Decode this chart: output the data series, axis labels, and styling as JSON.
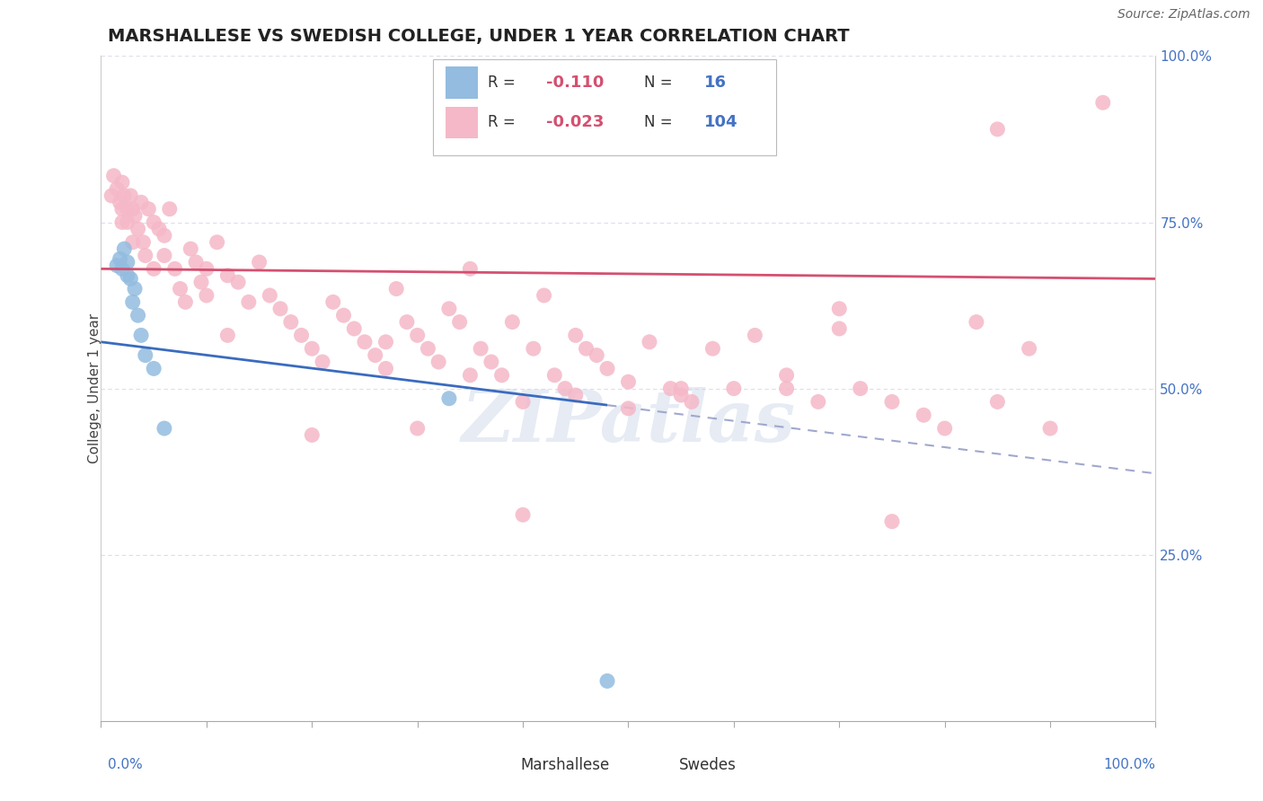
{
  "title": "MARSHALLESE VS SWEDISH COLLEGE, UNDER 1 YEAR CORRELATION CHART",
  "source_text": "Source: ZipAtlas.com",
  "ylabel": "College, Under 1 year",
  "watermark": "ZIPatlas",
  "R_marshallese": -0.11,
  "N_marshallese": 16,
  "R_swedes": -0.023,
  "N_swedes": 104,
  "blue_color": "#93bce0",
  "pink_color": "#f5b8c8",
  "blue_line_color": "#3a6bbf",
  "pink_line_color": "#d45070",
  "dashed_line_color": "#a0a8cc",
  "axis_label_color": "#4472c4",
  "legend_r_color": "#d45070",
  "legend_n_color": "#4472c4",
  "marsh_x": [
    1.5,
    1.8,
    2.0,
    2.2,
    2.5,
    2.5,
    2.8,
    3.0,
    3.2,
    3.5,
    3.8,
    4.2,
    5.0,
    6.0,
    33.0,
    48.0
  ],
  "marsh_y": [
    68.5,
    69.5,
    68.0,
    71.0,
    67.0,
    69.0,
    66.5,
    63.0,
    65.0,
    61.0,
    58.0,
    55.0,
    53.0,
    44.0,
    48.5,
    6.0
  ],
  "sw_x": [
    1.0,
    1.2,
    1.5,
    1.8,
    2.0,
    2.0,
    2.0,
    2.2,
    2.5,
    2.5,
    2.8,
    3.0,
    3.0,
    3.2,
    3.5,
    3.8,
    4.0,
    4.2,
    4.5,
    5.0,
    5.0,
    5.5,
    6.0,
    6.0,
    6.5,
    7.0,
    7.5,
    8.0,
    8.5,
    9.0,
    9.5,
    10.0,
    11.0,
    12.0,
    13.0,
    14.0,
    15.0,
    16.0,
    17.0,
    18.0,
    19.0,
    20.0,
    21.0,
    22.0,
    23.0,
    24.0,
    25.0,
    26.0,
    27.0,
    28.0,
    29.0,
    30.0,
    31.0,
    32.0,
    33.0,
    34.0,
    35.0,
    36.0,
    37.0,
    38.0,
    39.0,
    40.0,
    41.0,
    42.0,
    43.0,
    44.0,
    45.0,
    46.0,
    47.0,
    48.0,
    50.0,
    52.0,
    54.0,
    56.0,
    58.0,
    60.0,
    62.0,
    65.0,
    68.0,
    70.0,
    72.0,
    75.0,
    78.0,
    80.0,
    83.0,
    85.0,
    88.0,
    90.0,
    30.0,
    35.0,
    40.0,
    45.0,
    50.0,
    10.0,
    20.0,
    55.0,
    65.0,
    75.0,
    85.0,
    12.0,
    95.0,
    27.0,
    55.0,
    70.0
  ],
  "sw_y": [
    79.0,
    82.0,
    80.0,
    78.0,
    81.0,
    77.0,
    75.0,
    79.0,
    77.0,
    75.0,
    79.0,
    77.0,
    72.0,
    76.0,
    74.0,
    78.0,
    72.0,
    70.0,
    77.0,
    75.0,
    68.0,
    74.0,
    70.0,
    73.0,
    77.0,
    68.0,
    65.0,
    63.0,
    71.0,
    69.0,
    66.0,
    64.0,
    72.0,
    67.0,
    66.0,
    63.0,
    69.0,
    64.0,
    62.0,
    60.0,
    58.0,
    56.0,
    54.0,
    63.0,
    61.0,
    59.0,
    57.0,
    55.0,
    53.0,
    65.0,
    60.0,
    58.0,
    56.0,
    54.0,
    62.0,
    60.0,
    68.0,
    56.0,
    54.0,
    52.0,
    60.0,
    48.0,
    56.0,
    64.0,
    52.0,
    50.0,
    58.0,
    56.0,
    55.0,
    53.0,
    51.0,
    57.0,
    50.0,
    48.0,
    56.0,
    50.0,
    58.0,
    50.0,
    48.0,
    62.0,
    50.0,
    48.0,
    46.0,
    44.0,
    60.0,
    48.0,
    56.0,
    44.0,
    44.0,
    52.0,
    31.0,
    49.0,
    47.0,
    68.0,
    43.0,
    50.0,
    52.0,
    30.0,
    89.0,
    58.0,
    93.0,
    57.0,
    49.0,
    59.0
  ]
}
